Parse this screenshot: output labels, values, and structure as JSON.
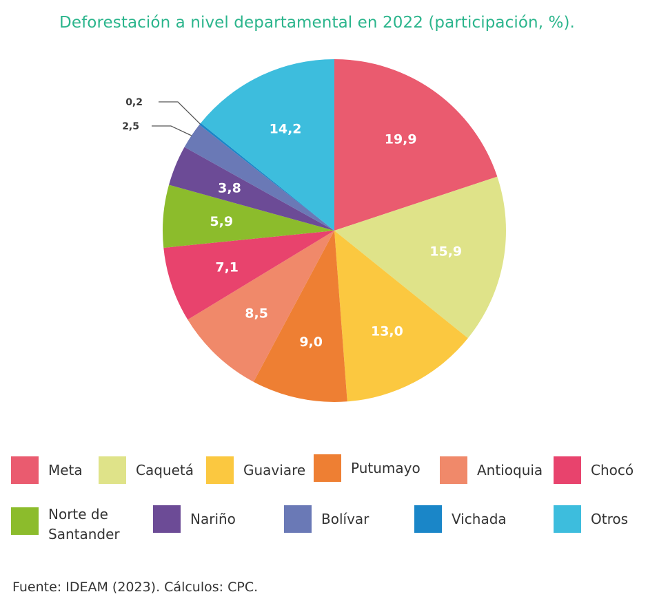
{
  "chart_data": {
    "type": "pie",
    "title": "Deforestación a nivel departamental en 2022 (participación, %).",
    "source": "Fuente: IDEAM (2023). Cálculos: CPC.",
    "legend_position": "bottom",
    "slices": [
      {
        "label": "Meta",
        "value": 19.9,
        "display": "19,9",
        "color": "#ea5b6f"
      },
      {
        "label": "Caquetá",
        "value": 15.9,
        "display": "15,9",
        "color": "#dfe389"
      },
      {
        "label": "Guaviare",
        "value": 13.0,
        "display": "13,0",
        "color": "#fbc840"
      },
      {
        "label": "Putumayo",
        "value": 9.0,
        "display": "9,0",
        "color": "#ee7f33"
      },
      {
        "label": "Antioquia",
        "value": 8.5,
        "display": "8,5",
        "color": "#f0896a"
      },
      {
        "label": "Chocó",
        "value": 7.1,
        "display": "7,1",
        "color": "#e8436d"
      },
      {
        "label": "Norte de Santander",
        "value": 5.9,
        "display": "5,9",
        "color": "#8cbc2c"
      },
      {
        "label": "Nariño",
        "value": 3.8,
        "display": "3,8",
        "color": "#6c4b96"
      },
      {
        "label": "Bolívar",
        "value": 2.5,
        "display": "2,5",
        "color": "#6a79b6"
      },
      {
        "label": "Vichada",
        "value": 0.2,
        "display": "0,2",
        "color": "#1a86c8"
      },
      {
        "label": "Otros",
        "value": 14.2,
        "display": "14,2",
        "color": "#3dbddd"
      }
    ]
  }
}
